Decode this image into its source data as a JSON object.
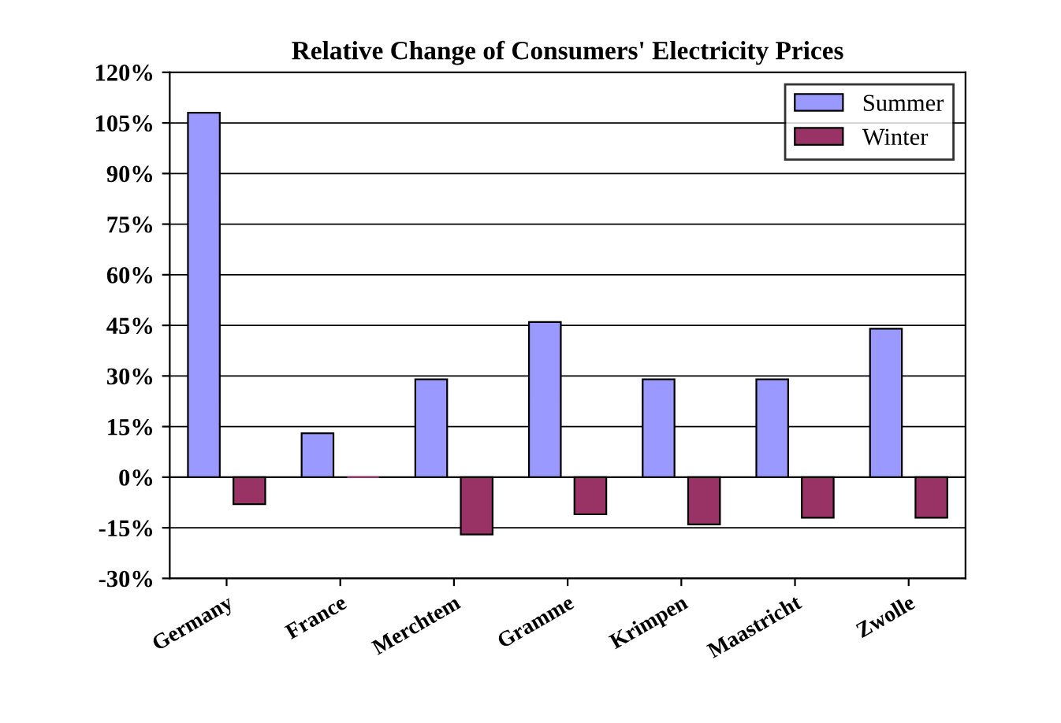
{
  "chart_data": {
    "type": "bar",
    "title": "Relative Change of Consumers' Electricity Prices",
    "categories": [
      "Germany",
      "France",
      "Merchtem",
      "Gramme",
      "Krimpen",
      "Maastricht",
      "Zwolle"
    ],
    "series": [
      {
        "name": "Summer",
        "color": "#9999ff",
        "values": [
          108,
          13,
          29,
          46,
          29,
          29,
          44
        ]
      },
      {
        "name": "Winter",
        "color": "#993366",
        "values": [
          -8,
          0,
          -17,
          -11,
          -14,
          -12,
          -12
        ]
      }
    ],
    "ylim": [
      -30,
      120
    ],
    "yticks": [
      {
        "value": -30,
        "label": "-30%"
      },
      {
        "value": -15,
        "label": "-15%"
      },
      {
        "value": 0,
        "label": "0%"
      },
      {
        "value": 15,
        "label": "15%"
      },
      {
        "value": 30,
        "label": "30%"
      },
      {
        "value": 45,
        "label": "45%"
      },
      {
        "value": 60,
        "label": "60%"
      },
      {
        "value": 75,
        "label": "75%"
      },
      {
        "value": 90,
        "label": "90%"
      },
      {
        "value": 105,
        "label": "105%"
      },
      {
        "value": 120,
        "label": "120%"
      }
    ],
    "grid": "y",
    "legend": "top right"
  }
}
